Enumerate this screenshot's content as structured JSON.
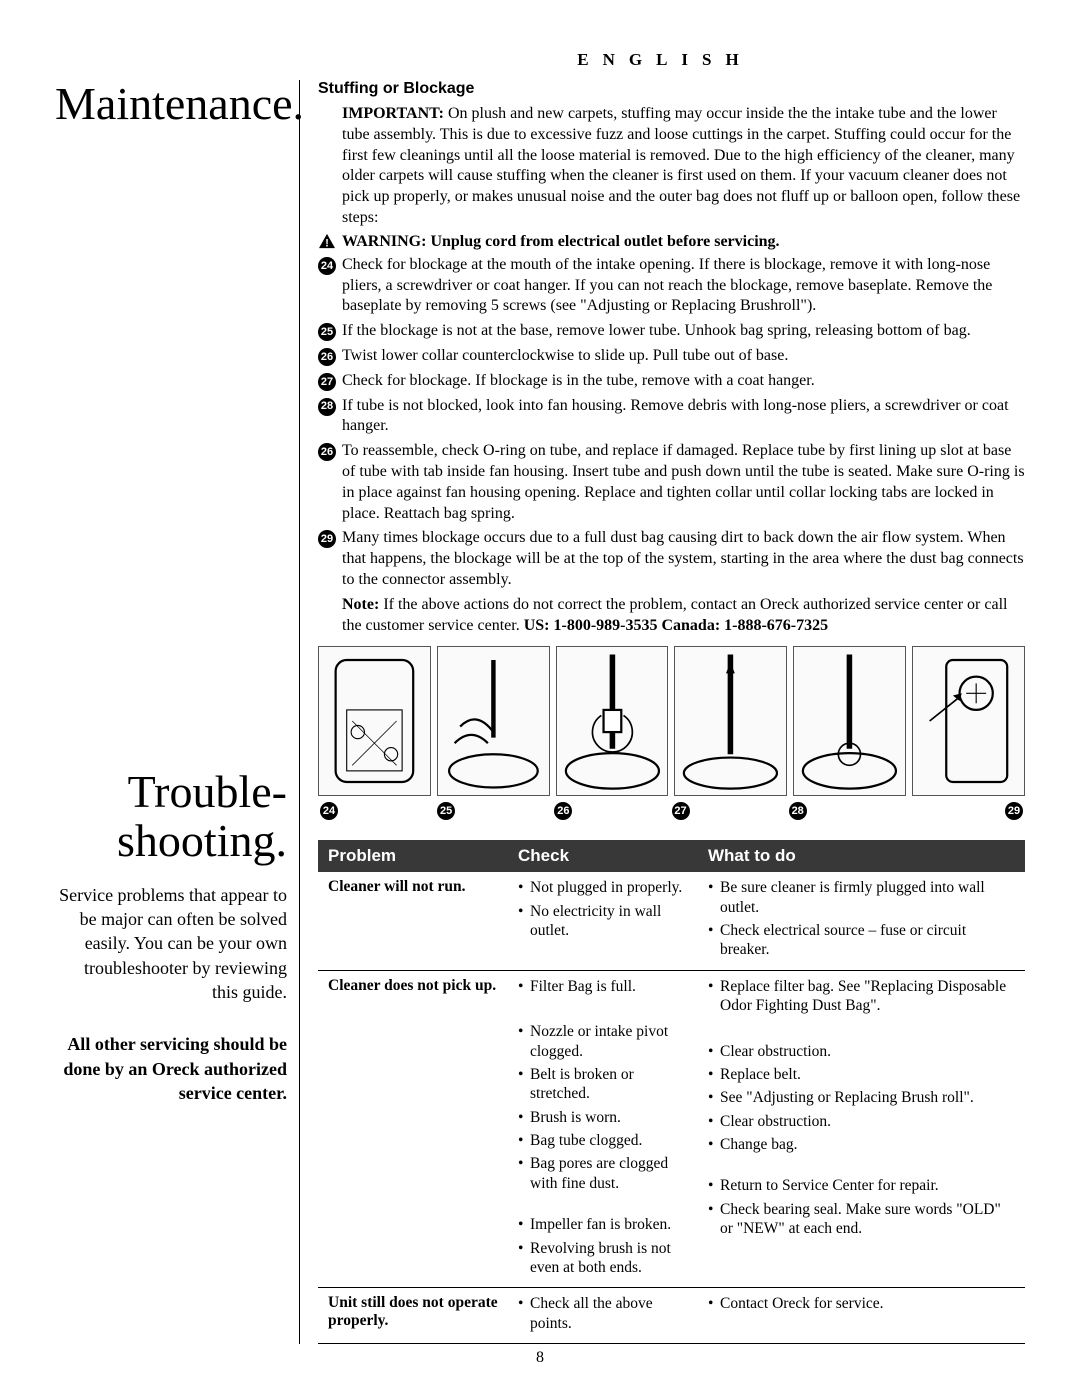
{
  "language_header": "ENGLISH",
  "page_number": "8",
  "maintenance": {
    "title": "Maintenance.",
    "subsection_title": "Stuffing or Blockage",
    "important_label": "IMPORTANT:",
    "important_text": " On plush and new carpets, stuffing may occur inside the the intake tube and the lower tube assembly. This is due to excessive fuzz and loose cuttings in the carpet. Stuffing could occur for the first few cleanings until all the loose material is removed. Due to the high efficiency of the cleaner, many older carpets will cause stuffing when the cleaner is first used on them. If your vacuum cleaner does not pick up properly, or makes unusual noise and the outer bag does not fluff up or balloon open, follow these steps:",
    "warning_text": "WARNING: Unplug cord from electrical outlet before servicing.",
    "steps": [
      {
        "num": "24",
        "text": "Check for blockage at the mouth of the intake opening. If there is blockage, remove it with long-nose pliers, a screwdriver or coat hanger. If you can not reach the blockage, remove baseplate. Remove the baseplate by removing 5 screws (see \"Adjusting or Replacing Brushroll\")."
      },
      {
        "num": "25",
        "text": "If the blockage is not at the base, remove lower tube. Unhook bag spring, releasing bottom of bag."
      },
      {
        "num": "26",
        "text": "Twist lower collar counterclockwise to slide up. Pull tube out of base."
      },
      {
        "num": "27",
        "text": "Check for blockage. If blockage is in the tube, remove with a coat hanger."
      },
      {
        "num": "28",
        "text": "If tube is not blocked, look into fan housing. Remove debris with long-nose pliers, a screwdriver or coat hanger."
      },
      {
        "num": "26",
        "text": "To reassemble, check O-ring on tube, and replace if damaged. Replace tube by first lining up slot at base of tube with tab inside fan housing. Insert tube and push down until the tube is seated. Make sure O-ring is in place against fan housing opening. Replace and tighten collar until collar locking tabs are locked in place. Reattach bag spring."
      },
      {
        "num": "29",
        "text": "Many times blockage occurs due to a full dust bag causing dirt to back down the air flow system. When that happens, the blockage will be at the top of the system, starting in the area where the dust bag connects to the connector assembly."
      }
    ],
    "note_label": "Note:",
    "note_text": " If the above actions do not correct the problem, contact an Oreck authorized service center or call the customer service center.  ",
    "phone_text": "US: 1-800-989-3535  Canada: 1-888-676-7325",
    "diagram_labels": [
      "24",
      "25",
      "26",
      "27",
      "28",
      "29"
    ]
  },
  "troubleshooting": {
    "title": "Trouble-\nshooting.",
    "intro": "Service problems that appear to be major can often be solved easily. You can be your own troubleshooter by reviewing this guide.",
    "bold_note": "All other servicing should be done by an Oreck authorized service center.",
    "headers": {
      "problem": "Problem",
      "check": "Check",
      "what": "What to do"
    },
    "rows": [
      {
        "problem": "Cleaner will not run.",
        "checks": [
          "Not plugged in properly.",
          "No electricity in wall outlet."
        ],
        "actions": [
          "Be sure cleaner is firmly plugged into wall outlet.",
          "Check electrical source – fuse or circuit breaker."
        ]
      },
      {
        "problem": "Cleaner does not pick up.",
        "checks": [
          "Filter Bag is full.",
          "Nozzle or intake pivot clogged.",
          "Belt is broken or stretched.",
          "Brush is worn.",
          "Bag tube clogged.",
          "Bag pores are clogged with fine dust.",
          "Impeller fan is broken.",
          "Revolving brush is not even at both ends."
        ],
        "actions": [
          "Replace filter bag. See \"Replacing Disposable Odor Fighting Dust Bag\".",
          "Clear obstruction.",
          "Replace belt.",
          "See \"Adjusting or Replacing Brush roll\".",
          "Clear obstruction.",
          "Change bag.",
          "Return to Service Center for repair.",
          "Check bearing seal. Make sure words \"OLD\" or \"NEW\" at each end."
        ]
      },
      {
        "problem": "Unit still does not operate properly.",
        "checks": [
          "Check all the above points."
        ],
        "actions": [
          "Contact Oreck for service."
        ]
      }
    ]
  }
}
